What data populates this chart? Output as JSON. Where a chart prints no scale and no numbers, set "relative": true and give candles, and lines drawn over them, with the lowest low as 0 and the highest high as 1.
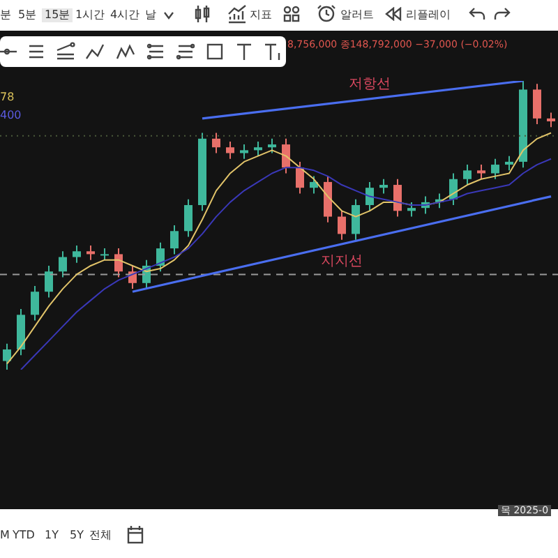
{
  "chart_data": {
    "type": "candlestick",
    "relative": true,
    "tick_labels": false,
    "categories": [
      null,
      null,
      null,
      null,
      null,
      null,
      null,
      null,
      null,
      null,
      null,
      null,
      null,
      null,
      null,
      null,
      null,
      null,
      null,
      null,
      null,
      null,
      null,
      null,
      null,
      null,
      null,
      null,
      null,
      null,
      null,
      null,
      null,
      null,
      null,
      null,
      null,
      null,
      null,
      null
    ],
    "ohlc": [
      [
        0.03,
        0.09,
        0,
        0.07
      ],
      [
        0.07,
        0.21,
        0.05,
        0.19
      ],
      [
        0.19,
        0.29,
        0.17,
        0.27
      ],
      [
        0.27,
        0.36,
        0.25,
        0.34
      ],
      [
        0.34,
        0.41,
        0.32,
        0.39
      ],
      [
        0.39,
        0.43,
        0.37,
        0.41
      ],
      [
        0.41,
        0.43,
        0.38,
        0.4
      ],
      [
        0.4,
        0.42,
        0.38,
        0.4
      ],
      [
        0.4,
        0.42,
        0.32,
        0.34
      ],
      [
        0.34,
        0.36,
        0.28,
        0.3
      ],
      [
        0.3,
        0.38,
        0.28,
        0.36
      ],
      [
        0.36,
        0.44,
        0.34,
        0.42
      ],
      [
        0.42,
        0.5,
        0.4,
        0.48
      ],
      [
        0.48,
        0.59,
        0.46,
        0.57
      ],
      [
        0.57,
        0.82,
        0.55,
        0.8
      ],
      [
        0.8,
        0.82,
        0.75,
        0.77
      ],
      [
        0.77,
        0.79,
        0.73,
        0.75
      ],
      [
        0.75,
        0.78,
        0.73,
        0.76
      ],
      [
        0.76,
        0.79,
        0.74,
        0.77
      ],
      [
        0.77,
        0.8,
        0.75,
        0.78
      ],
      [
        0.78,
        0.8,
        0.68,
        0.7
      ],
      [
        0.7,
        0.72,
        0.61,
        0.63
      ],
      [
        0.63,
        0.67,
        0.61,
        0.65
      ],
      [
        0.65,
        0.67,
        0.51,
        0.53
      ],
      [
        0.53,
        0.55,
        0.45,
        0.47
      ],
      [
        0.47,
        0.59,
        0.45,
        0.57
      ],
      [
        0.57,
        0.65,
        0.55,
        0.63
      ],
      [
        0.63,
        0.66,
        0.61,
        0.64
      ],
      [
        0.64,
        0.66,
        0.53,
        0.55
      ],
      [
        0.55,
        0.58,
        0.53,
        0.56
      ],
      [
        0.56,
        0.6,
        0.54,
        0.58
      ],
      [
        0.58,
        0.61,
        0.56,
        0.59
      ],
      [
        0.59,
        0.68,
        0.57,
        0.66
      ],
      [
        0.66,
        0.71,
        0.64,
        0.69
      ],
      [
        0.69,
        0.71,
        0.66,
        0.68
      ],
      [
        0.68,
        0.73,
        0.66,
        0.71
      ],
      [
        0.71,
        0.74,
        0.69,
        0.72
      ],
      [
        0.72,
        1,
        0.7,
        0.97
      ],
      [
        0.97,
        0.99,
        0.85,
        0.87
      ],
      [
        0.87,
        0.89,
        0.84,
        0.86
      ]
    ],
    "series": [
      {
        "type": "line",
        "color": "#e2c46a",
        "values": [
          0.02,
          0.08,
          0.15,
          0.22,
          0.28,
          0.33,
          0.36,
          0.38,
          0.38,
          0.36,
          0.34,
          0.35,
          0.38,
          0.43,
          0.52,
          0.62,
          0.68,
          0.72,
          0.74,
          0.76,
          0.74,
          0.7,
          0.66,
          0.6,
          0.55,
          0.53,
          0.55,
          0.58,
          0.58,
          0.57,
          0.57,
          0.58,
          0.61,
          0.64,
          0.66,
          0.67,
          0.68,
          0.76,
          0.8,
          0.82
        ]
      },
      {
        "type": "line",
        "color": "#3a38b8",
        "values": [
          null,
          0,
          0.05,
          0.1,
          0.15,
          0.2,
          0.24,
          0.28,
          0.31,
          0.33,
          0.35,
          0.37,
          0.39,
          0.42,
          0.47,
          0.53,
          0.58,
          0.62,
          0.65,
          0.68,
          0.7,
          0.7,
          0.69,
          0.67,
          0.64,
          0.62,
          0.6,
          0.59,
          0.58,
          0.57,
          0.57,
          0.58,
          0.59,
          0.61,
          0.62,
          0.63,
          0.64,
          0.68,
          0.71,
          0.73
        ]
      },
      {
        "type": "line",
        "name": "저항선",
        "color": "#4a6ef0",
        "values": [
          null,
          null,
          null,
          null,
          null,
          null,
          null,
          null,
          null,
          null,
          null,
          null,
          null,
          null,
          0.87,
          null,
          null,
          null,
          null,
          null,
          null,
          null,
          null,
          null,
          null,
          null,
          null,
          null,
          null,
          null,
          null,
          null,
          null,
          null,
          null,
          null,
          null,
          1,
          null,
          null
        ]
      },
      {
        "type": "line",
        "name": "지지선",
        "color": "#4a6ef0",
        "values": [
          null,
          null,
          null,
          null,
          null,
          null,
          null,
          null,
          null,
          0.27,
          null,
          null,
          null,
          null,
          null,
          null,
          null,
          null,
          null,
          null,
          null,
          null,
          null,
          null,
          null,
          null,
          null,
          null,
          null,
          null,
          null,
          null,
          null,
          null,
          null,
          null,
          null,
          null,
          null,
          0.6
        ]
      }
    ],
    "ref_lines": [
      {
        "axis": "y",
        "value": 0.81,
        "color": "#4a5a3a",
        "line_style": "dotted"
      },
      {
        "axis": "y",
        "value": 0.33,
        "color": "#9a9a9a",
        "line_style": "dashed"
      }
    ],
    "annotations": [
      "분",
      "5분",
      "15분",
      "1시간",
      "4시간",
      "날",
      "지표",
      "알러트",
      "리플레이",
      "8,756,000 종148,792,000 −37,000 (−0.02%)",
      "78",
      "400",
      "목 2025-0",
      "M",
      "YTD",
      "1Y",
      "5Y",
      "전체"
    ]
  }
}
